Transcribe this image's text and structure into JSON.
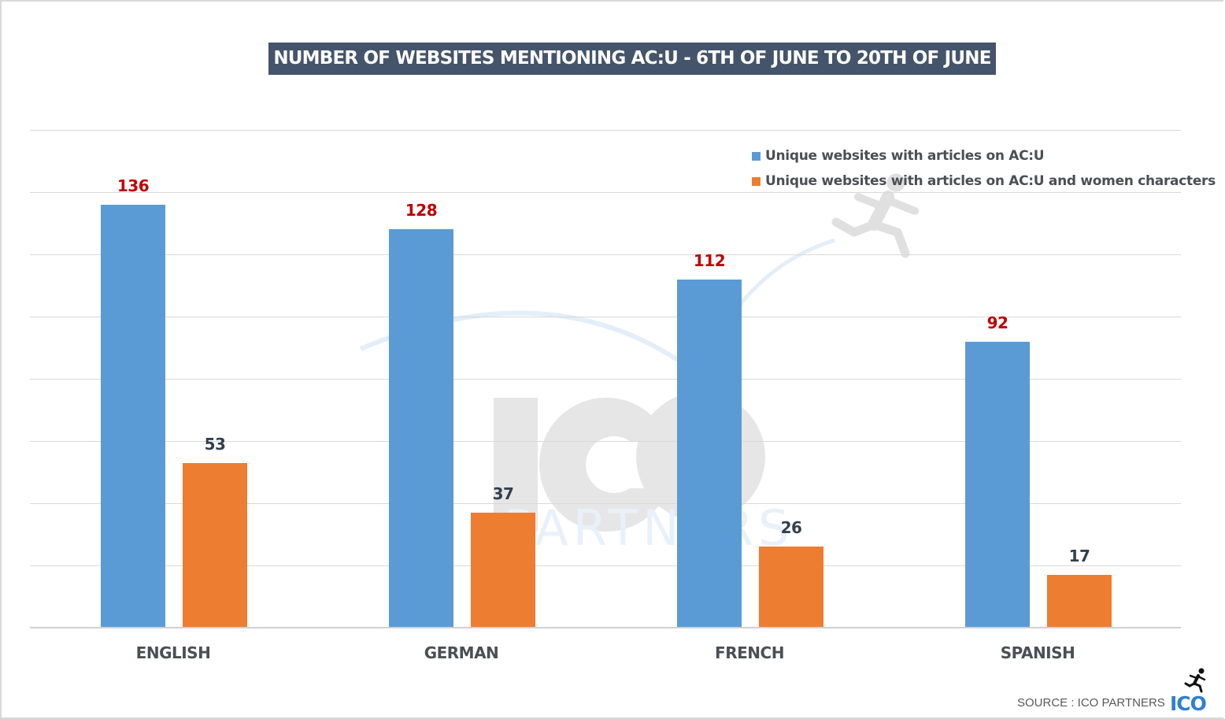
{
  "title": "NUMBER OF WEBSITES MENTIONING AC:U - 6TH OF JUNE TO 20TH OF JUNE",
  "legend": [
    {
      "label": "Unique websites with articles on AC:U",
      "color": "#5b9bd5"
    },
    {
      "label": "Unique websites with articles on AC:U and women characters",
      "color": "#ed7d31"
    }
  ],
  "categories": [
    "ENGLISH",
    "GERMAN",
    "FRENCH",
    "SPANISH"
  ],
  "values": {
    "total": [
      "136",
      "128",
      "112",
      "92"
    ],
    "women": [
      "53",
      "37",
      "26",
      "17"
    ]
  },
  "colors": {
    "title_bg": "#44546a",
    "series1": "#5b9bd5",
    "series2": "#ed7d31",
    "label1": "#c00000",
    "label2": "#323f4f",
    "gridline": "#d9d9d9"
  },
  "watermark": {
    "main": "ICO",
    "sub": "PARTNERS"
  },
  "footer": {
    "source": "SOURCE : ICO PARTNERS",
    "logo": "ICO"
  },
  "chart_data": {
    "type": "bar",
    "title": "NUMBER OF WEBSITES MENTIONING AC:U - 6TH OF JUNE TO 20TH OF JUNE",
    "categories": [
      "ENGLISH",
      "GERMAN",
      "FRENCH",
      "SPANISH"
    ],
    "series": [
      {
        "name": "Unique websites with articles on AC:U",
        "values": [
          136,
          128,
          112,
          92
        ],
        "color": "#5b9bd5"
      },
      {
        "name": "Unique websites with articles on AC:U and women characters",
        "values": [
          53,
          37,
          26,
          17
        ],
        "color": "#ed7d31"
      }
    ],
    "xlabel": "",
    "ylabel": "",
    "ylim": [
      0,
      160
    ],
    "grid": true,
    "y_axis_labels_shown": false,
    "legend_position": "top-right",
    "data_labels": true,
    "source": "SOURCE : ICO PARTNERS"
  }
}
